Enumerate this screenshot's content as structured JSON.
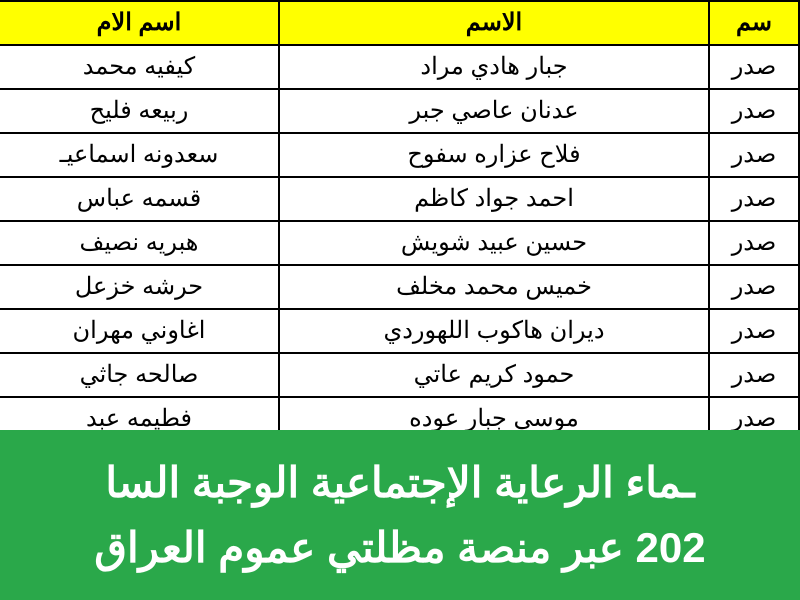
{
  "colors": {
    "header_bg": "#ffff00",
    "banner_bg": "#2aa84a",
    "banner_fg": "#ffffff",
    "border": "#000000"
  },
  "table": {
    "columns": {
      "district": "سم",
      "name": "الاسم",
      "mother": "اسم الام"
    },
    "rows": [
      {
        "district": "صدر",
        "name": "جبار هادي مراد",
        "mother": "كيفيه محمد"
      },
      {
        "district": "صدر",
        "name": "عدنان عاصي جبر",
        "mother": "ربيعه فليح"
      },
      {
        "district": "صدر",
        "name": "فلاح عزاره سفوح",
        "mother": "سعدونه اسماعيـ"
      },
      {
        "district": "صدر",
        "name": "احمد جواد كاظم",
        "mother": "قسمه عباس"
      },
      {
        "district": "صدر",
        "name": "حسين عبيد شويش",
        "mother": "هبريه نصيف"
      },
      {
        "district": "صدر",
        "name": "خميس محمد مخلف",
        "mother": "حرشه خزعل"
      },
      {
        "district": "صدر",
        "name": "ديران هاكوب اللهوردي",
        "mother": "اغاوني مهران"
      },
      {
        "district": "صدر",
        "name": "حمود كريم عاتي",
        "mother": "صالحه جاثي"
      },
      {
        "district": "صدر",
        "name": "موسى جبار عوده",
        "mother": "فطيمه عبد"
      }
    ]
  },
  "banner": {
    "line1": "ـماء الرعاية الإجتماعية الوجبة السا",
    "line2": "202 عبر منصة مظلتي عموم العراق"
  }
}
